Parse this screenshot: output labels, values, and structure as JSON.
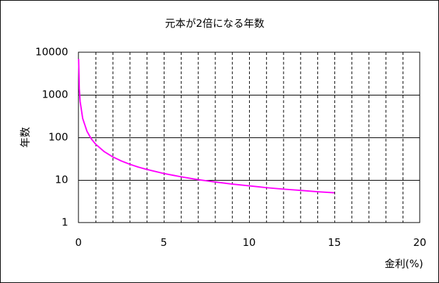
{
  "chart_data": {
    "type": "line",
    "title": "元本が2倍になる年数",
    "xlabel": "金利(%)",
    "ylabel": "年数",
    "xlim": [
      0,
      20
    ],
    "ylim": [
      1,
      10000
    ],
    "y_scale": "log",
    "x_ticks": [
      "0",
      "5",
      "10",
      "15",
      "20"
    ],
    "y_ticks": [
      "1",
      "10",
      "100",
      "1000",
      "10000"
    ],
    "x_grid": "dashed, every 1",
    "y_grid": "solid, every decade",
    "series_color": "#ff00ff",
    "series": [
      {
        "x": [
          0.01,
          0.05,
          0.1,
          0.25,
          0.5,
          0.75,
          1,
          1.5,
          2,
          2.5,
          3,
          3.5,
          4,
          5,
          6,
          7,
          8,
          9,
          10,
          11,
          12,
          13,
          14,
          15
        ],
        "y": [
          6931.8,
          1386.6,
          693.5,
          277.6,
          139,
          92.8,
          69.7,
          46.6,
          35,
          28.1,
          23.4,
          20.1,
          17.7,
          14.2,
          11.9,
          10.2,
          9,
          8,
          7.3,
          6.6,
          6.1,
          5.7,
          5.3,
          5
        ]
      }
    ]
  }
}
